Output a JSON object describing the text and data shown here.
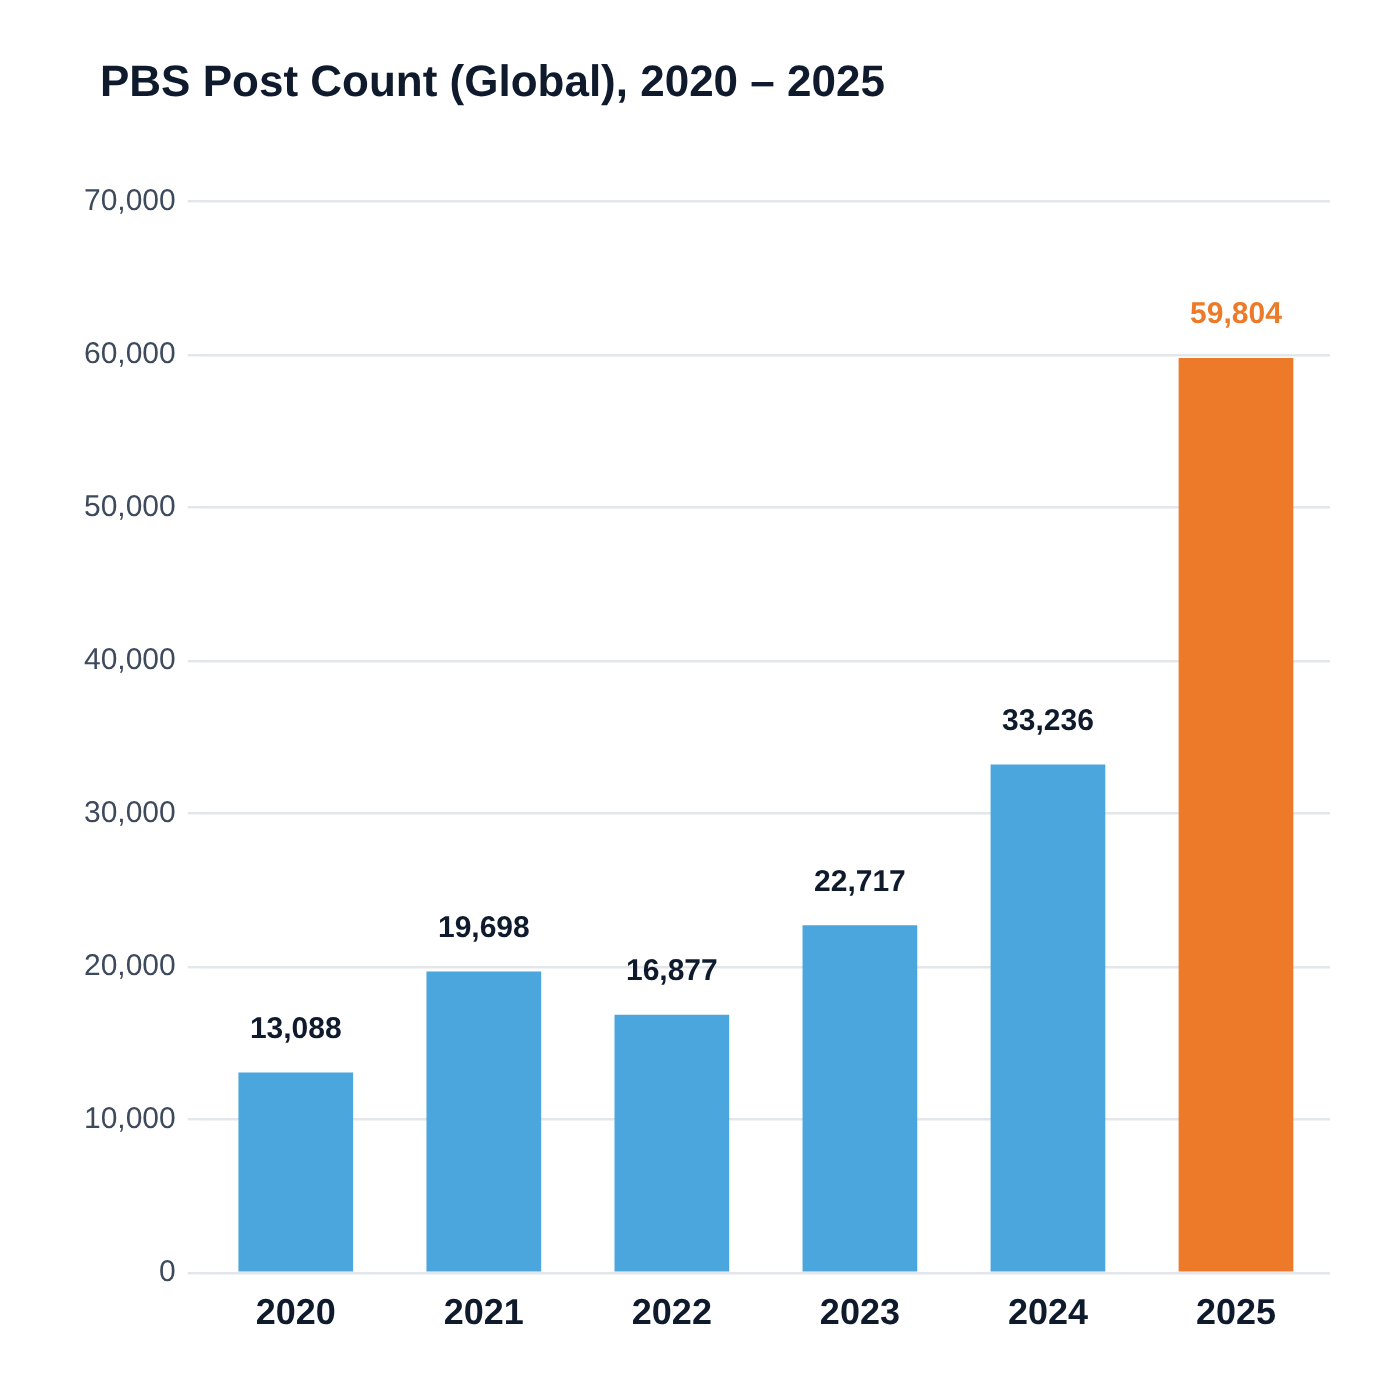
{
  "chart_data": {
    "type": "bar",
    "title": "PBS Post Count (Global), 2020 – 2025",
    "categories": [
      "2020",
      "2021",
      "2022",
      "2023",
      "2024",
      "2025"
    ],
    "values": [
      13088,
      19698,
      16877,
      22717,
      33236,
      59804
    ],
    "value_labels": [
      "13,088",
      "19,698",
      "16,877",
      "22,717",
      "33,236",
      "59,804"
    ],
    "colors": [
      "#4aa6dc",
      "#4aa6dc",
      "#4aa6dc",
      "#4aa6dc",
      "#4aa6dc",
      "#ec7a28"
    ],
    "ylim": [
      0,
      70000
    ],
    "yticks": [
      0,
      {
        "value": 10000,
        "label": "10,000"
      },
      {
        "value": 20000,
        "label": "20,000"
      },
      {
        "value": 30000,
        "label": "30,000"
      },
      {
        "value": 40000,
        "label": "40,000"
      },
      {
        "value": 50000,
        "label": "50,000"
      },
      {
        "value": 60000,
        "label": "60,000"
      },
      {
        "value": 70000,
        "label": "70,000"
      }
    ],
    "grid": "y"
  }
}
